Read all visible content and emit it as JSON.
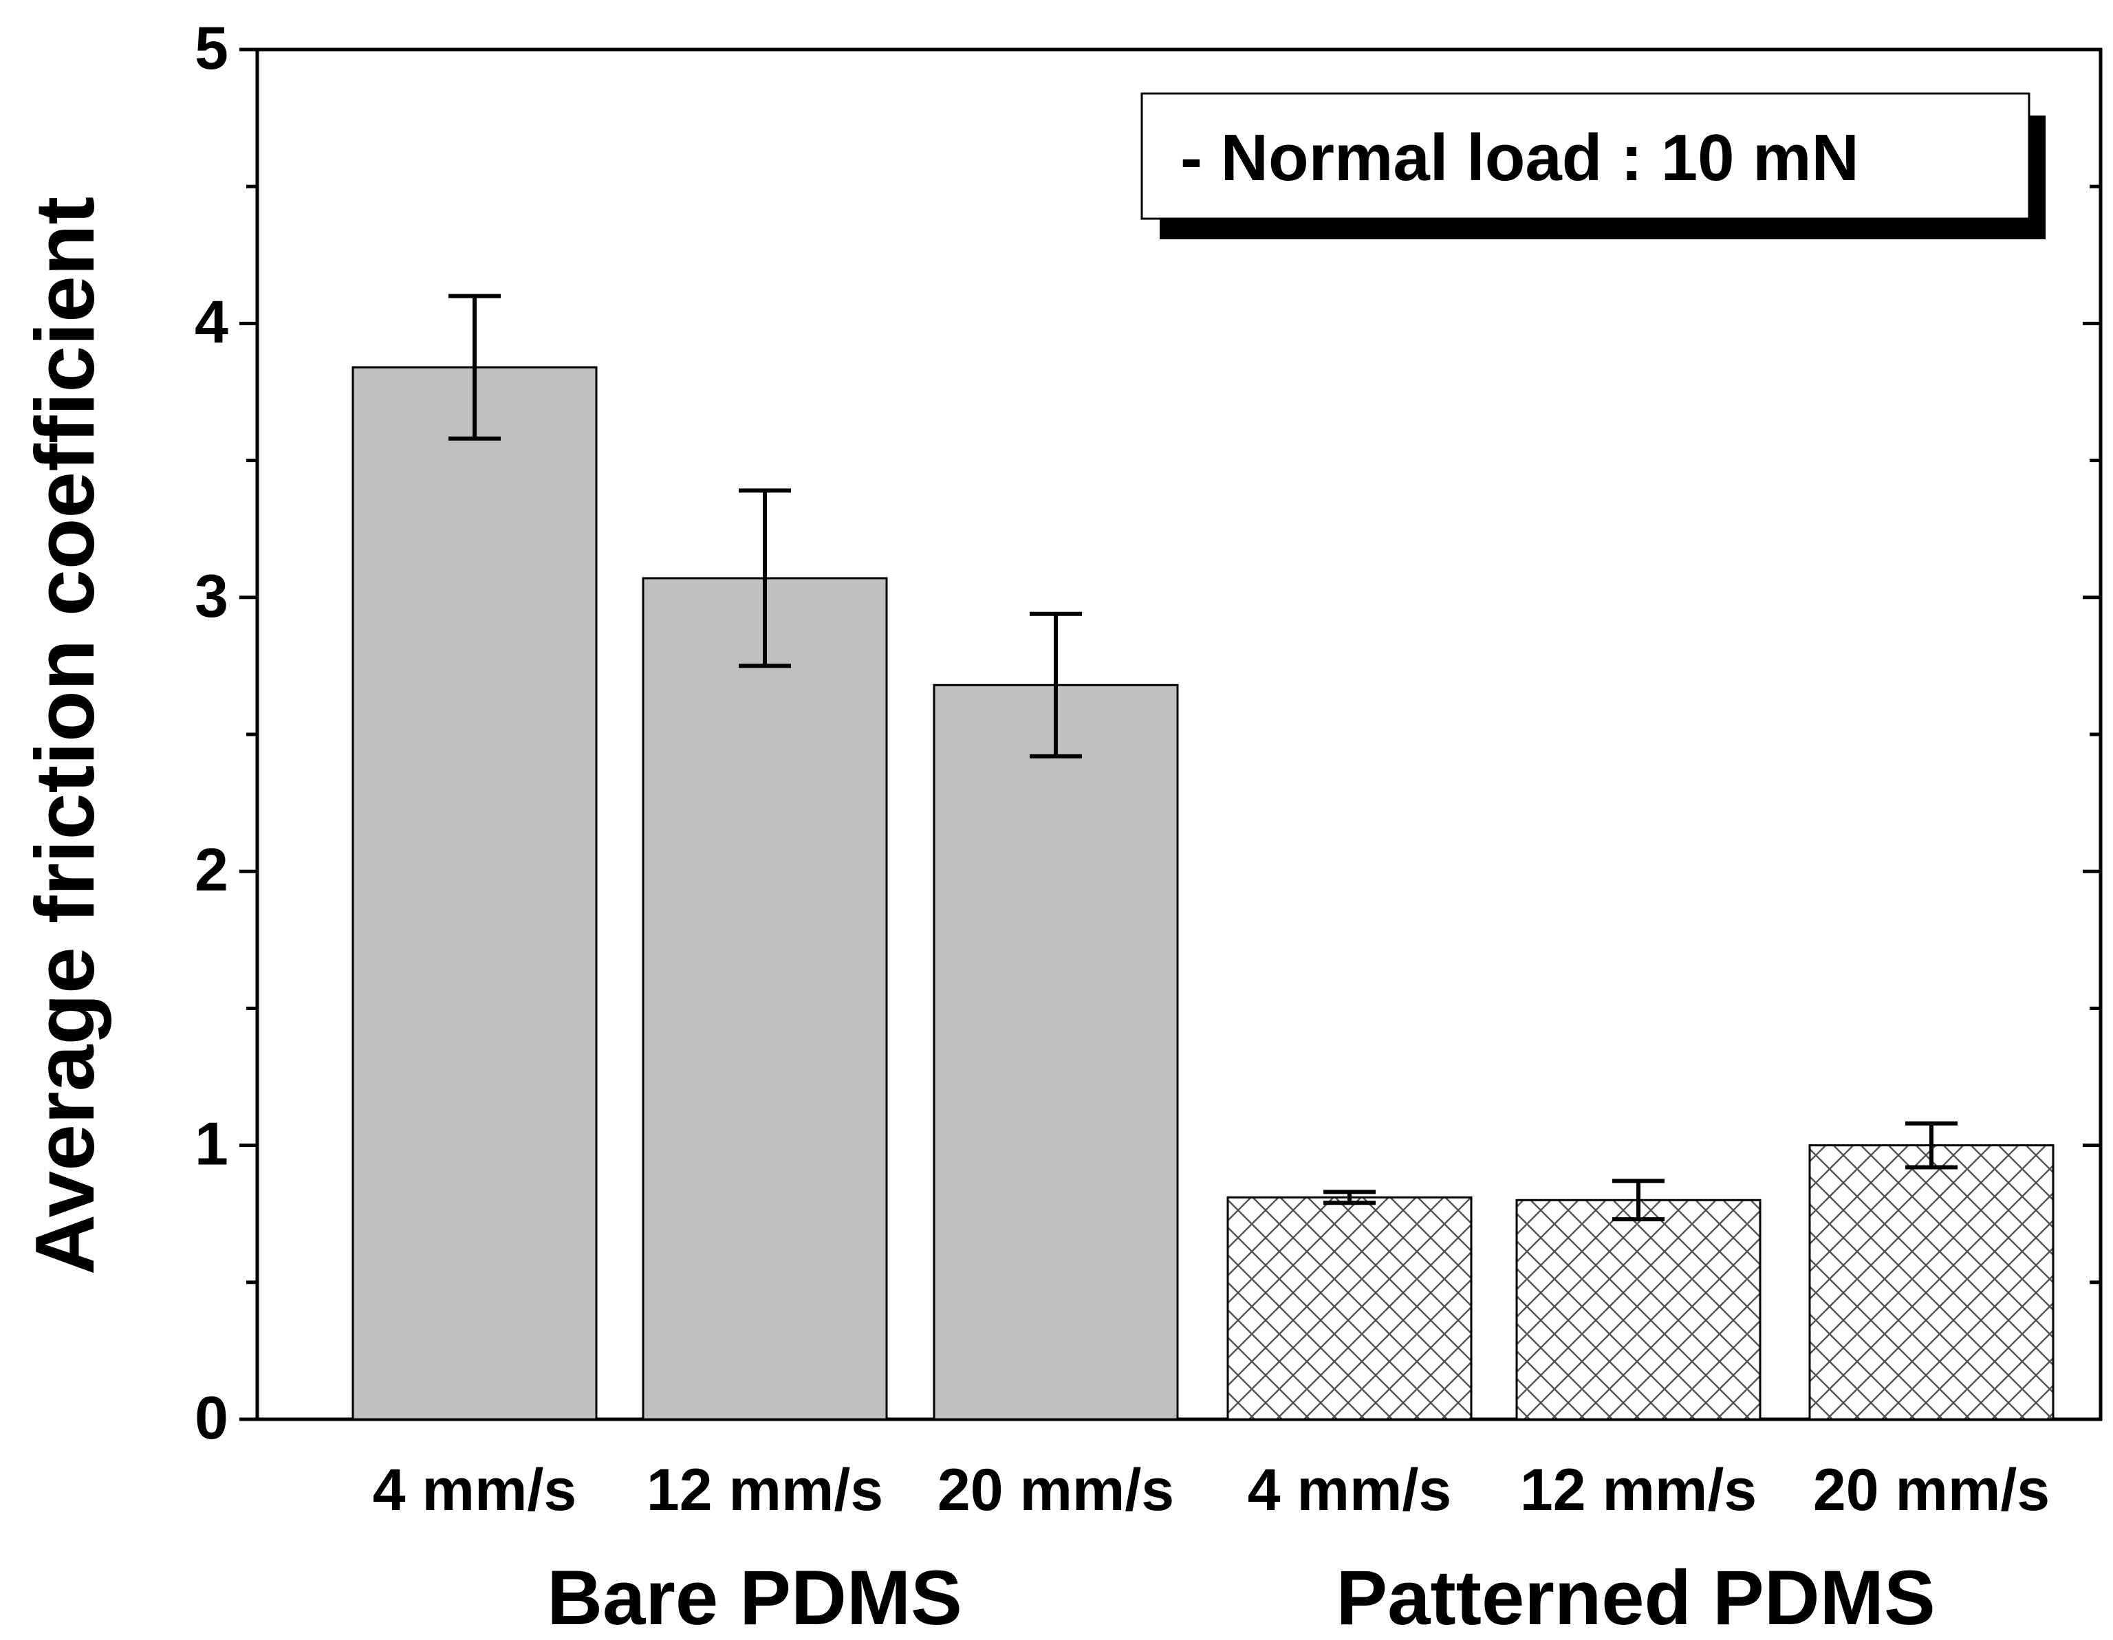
{
  "chart_data": {
    "type": "bar",
    "title": "",
    "xlabel": "",
    "ylabel": "Average friction coefficient",
    "ylim": [
      0,
      5
    ],
    "y_ticks": [
      "0",
      "1",
      "2",
      "3",
      "4",
      "5"
    ],
    "grid": false,
    "annotation": "- Normal load : 10 mN",
    "annotation_position": "top-right",
    "categories": [
      "4 mm/s",
      "12 mm/s",
      "20 mm/s",
      "4 mm/s",
      "12 mm/s",
      "20 mm/s"
    ],
    "groups": [
      {
        "label": "Bare PDMS",
        "categories": [
          0,
          1,
          2
        ],
        "fill": "solid",
        "color": "#c0c0c0"
      },
      {
        "label": "Patterned PDMS",
        "categories": [
          3,
          4,
          5
        ],
        "fill": "crosshatch",
        "color": "#ffffff"
      }
    ],
    "values": [
      3.84,
      3.07,
      2.68,
      0.81,
      0.8,
      1.0
    ],
    "errors": [
      0.26,
      0.32,
      0.26,
      0.02,
      0.07,
      0.08
    ]
  }
}
